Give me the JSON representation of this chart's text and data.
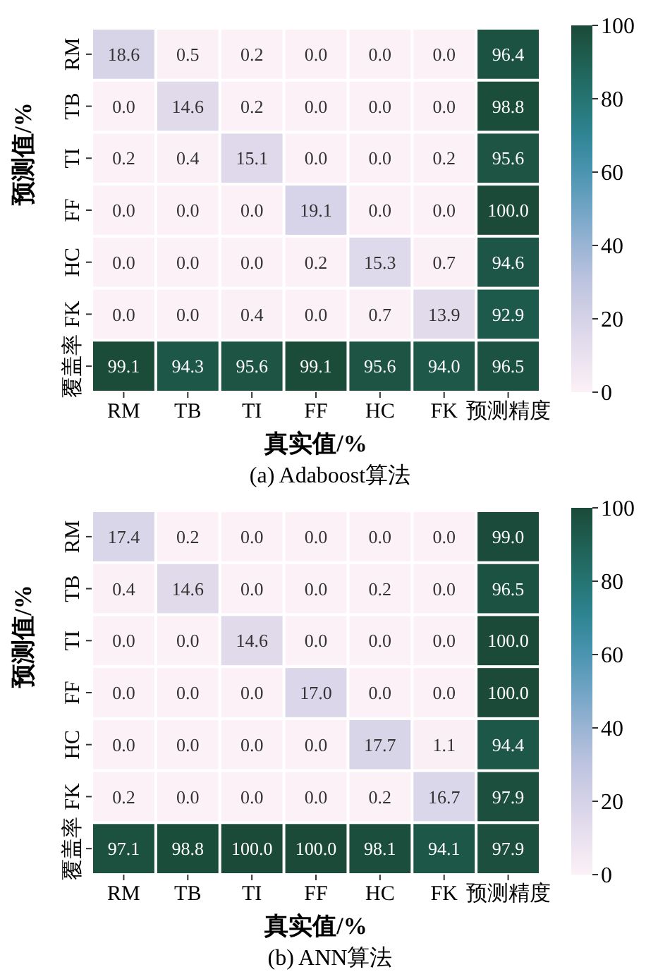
{
  "chart_data": [
    {
      "type": "heatmap",
      "title": "(a) Adaboost算法",
      "xlabel": "真实值/%",
      "ylabel": "预测值/%",
      "categories": [
        "RM",
        "TB",
        "TI",
        "FF",
        "HC",
        "FK",
        "预测精度"
      ],
      "y_categories": [
        "RM",
        "TB",
        "TI",
        "FF",
        "HC",
        "FK",
        "覆盖率"
      ],
      "cells": [
        [
          18.6,
          0.5,
          0.2,
          0.0,
          0.0,
          0.0,
          96.4
        ],
        [
          0.0,
          14.6,
          0.2,
          0.0,
          0.0,
          0.0,
          98.8
        ],
        [
          0.2,
          0.4,
          15.1,
          0.0,
          0.0,
          0.2,
          95.6
        ],
        [
          0.0,
          0.0,
          0.0,
          19.1,
          0.0,
          0.0,
          100.0
        ],
        [
          0.0,
          0.0,
          0.0,
          0.2,
          15.3,
          0.7,
          94.6
        ],
        [
          0.0,
          0.0,
          0.4,
          0.0,
          0.7,
          13.9,
          92.9
        ],
        [
          99.1,
          94.3,
          95.6,
          99.1,
          95.6,
          94.0,
          96.5
        ]
      ],
      "cell_labels": [
        [
          "18.6",
          "0.5",
          "0.2",
          "0.0",
          "0.0",
          "0.0",
          "96.4"
        ],
        [
          "0.0",
          "14.6",
          "0.2",
          "0.0",
          "0.0",
          "0.0",
          "98.8"
        ],
        [
          "0.2",
          "0.4",
          "15.1",
          "0.0",
          "0.0",
          "0.2",
          "95.6"
        ],
        [
          "0.0",
          "0.0",
          "0.0",
          "19.1",
          "0.0",
          "0.0",
          "100.0"
        ],
        [
          "0.0",
          "0.0",
          "0.0",
          "0.2",
          "15.3",
          "0.7",
          "94.6"
        ],
        [
          "0.0",
          "0.0",
          "0.4",
          "0.0",
          "0.7",
          "13.9",
          "92.9"
        ],
        [
          "99.1",
          "94.3",
          "95.6",
          "99.1",
          "95.6",
          "94.0",
          "96.5"
        ]
      ],
      "clim": [
        0,
        100
      ],
      "cticks": [
        0,
        20,
        40,
        60,
        80,
        100
      ]
    },
    {
      "type": "heatmap",
      "title": "(b) ANN算法",
      "xlabel": "真实值/%",
      "ylabel": "预测值/%",
      "categories": [
        "RM",
        "TB",
        "TI",
        "FF",
        "HC",
        "FK",
        "预测精度"
      ],
      "y_categories": [
        "RM",
        "TB",
        "TI",
        "FF",
        "HC",
        "FK",
        "覆盖率"
      ],
      "cells": [
        [
          17.4,
          0.2,
          0.0,
          0.0,
          0.0,
          0.0,
          99.0
        ],
        [
          0.4,
          14.6,
          0.0,
          0.0,
          0.2,
          0.0,
          96.5
        ],
        [
          0.0,
          0.0,
          14.6,
          0.0,
          0.0,
          0.0,
          100.0
        ],
        [
          0.0,
          0.0,
          0.0,
          17.0,
          0.0,
          0.0,
          100.0
        ],
        [
          0.0,
          0.0,
          0.0,
          0.0,
          17.7,
          1.1,
          94.4
        ],
        [
          0.2,
          0.0,
          0.0,
          0.0,
          0.2,
          16.7,
          97.9
        ],
        [
          97.1,
          98.8,
          100.0,
          100.0,
          98.1,
          94.1,
          97.9
        ]
      ],
      "cell_labels": [
        [
          "17.4",
          "0.2",
          "0.0",
          "0.0",
          "0.0",
          "0.0",
          "99.0"
        ],
        [
          "0.4",
          "14.6",
          "0.0",
          "0.0",
          "0.2",
          "0.0",
          "96.5"
        ],
        [
          "0.0",
          "0.0",
          "14.6",
          "0.0",
          "0.0",
          "0.0",
          "100.0"
        ],
        [
          "0.0",
          "0.0",
          "0.0",
          "17.0",
          "0.0",
          "0.0",
          "100.0"
        ],
        [
          "0.0",
          "0.0",
          "0.0",
          "0.0",
          "17.7",
          "1.1",
          "94.4"
        ],
        [
          "0.2",
          "0.0",
          "0.0",
          "0.0",
          "0.2",
          "16.7",
          "97.9"
        ],
        [
          "97.1",
          "98.8",
          "100.0",
          "100.0",
          "98.1",
          "94.1",
          "97.9"
        ]
      ],
      "clim": [
        0,
        100
      ],
      "cticks": [
        0,
        20,
        40,
        60,
        80,
        100
      ]
    }
  ]
}
